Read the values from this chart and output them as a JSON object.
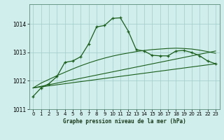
{
  "background_color": "#d0eeec",
  "grid_color": "#a0ccca",
  "line_color": "#1a5e1a",
  "title": "Graphe pression niveau de la mer (hPa)",
  "xlim": [
    -0.5,
    23.5
  ],
  "ylim": [
    1011.0,
    1014.7
  ],
  "yticks": [
    1011,
    1012,
    1013,
    1014
  ],
  "xticks": [
    0,
    1,
    2,
    3,
    4,
    5,
    6,
    7,
    8,
    9,
    10,
    11,
    12,
    13,
    14,
    15,
    16,
    17,
    18,
    19,
    20,
    21,
    22,
    23
  ],
  "series_main": {
    "x": [
      0,
      1,
      2,
      3,
      4,
      5,
      6,
      7,
      8,
      9,
      10,
      11,
      12,
      13,
      14,
      15,
      16,
      17,
      18,
      19,
      20,
      21,
      22,
      23
    ],
    "y": [
      1011.45,
      1011.75,
      1011.9,
      1012.15,
      1012.65,
      1012.7,
      1012.85,
      1013.3,
      1013.9,
      1013.95,
      1014.2,
      1014.22,
      1013.75,
      1013.1,
      1013.05,
      1012.9,
      1012.88,
      1012.88,
      1013.05,
      1013.07,
      1013.0,
      1012.88,
      1012.7,
      1012.6
    ]
  },
  "series_smooth": {
    "x": [
      0,
      1,
      2,
      3,
      4,
      5,
      6,
      7,
      8,
      9,
      10,
      11,
      12,
      13,
      14,
      15,
      16,
      17,
      18,
      19,
      20,
      21,
      22,
      23
    ],
    "y": [
      1011.75,
      1011.92,
      1012.05,
      1012.18,
      1012.3,
      1012.42,
      1012.53,
      1012.63,
      1012.72,
      1012.8,
      1012.87,
      1012.93,
      1012.98,
      1013.03,
      1013.07,
      1013.1,
      1013.12,
      1013.14,
      1013.15,
      1013.14,
      1013.12,
      1013.08,
      1013.03,
      1012.97
    ]
  },
  "line1_x": [
    0,
    23
  ],
  "line1_y": [
    1011.75,
    1013.05
  ],
  "line2_x": [
    0,
    23
  ],
  "line2_y": [
    1011.75,
    1012.6
  ]
}
